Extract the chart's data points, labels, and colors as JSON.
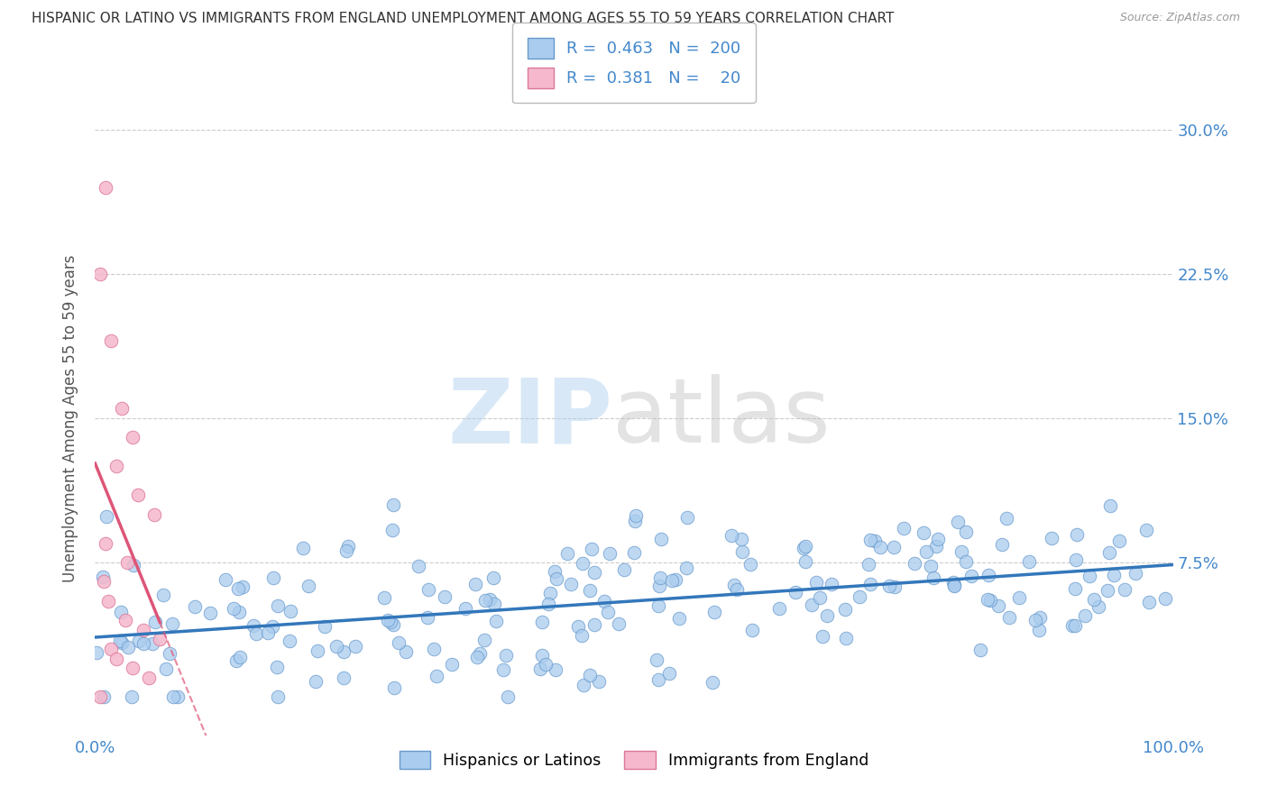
{
  "title": "HISPANIC OR LATINO VS IMMIGRANTS FROM ENGLAND UNEMPLOYMENT AMONG AGES 55 TO 59 YEARS CORRELATION CHART",
  "source": "Source: ZipAtlas.com",
  "ylabel": "Unemployment Among Ages 55 to 59 years",
  "xmin": 0.0,
  "xmax": 100.0,
  "ymin": -1.5,
  "ymax": 31.5,
  "ytick_vals": [
    0.0,
    7.5,
    15.0,
    22.5,
    30.0
  ],
  "ytick_labels": [
    "",
    "7.5%",
    "15.0%",
    "22.5%",
    "30.0%"
  ],
  "xtick_vals": [
    0.0,
    100.0
  ],
  "xtick_labels": [
    "0.0%",
    "100.0%"
  ],
  "series1_color": "#aaccee",
  "series1_edge": "#6699cc",
  "series2_color": "#f5b8cc",
  "series2_edge": "#dd7799",
  "trendline1_color": "#3377bb",
  "trendline2_color": "#dd5577",
  "legend_r1": "0.463",
  "legend_n1": "200",
  "legend_r2": "0.381",
  "legend_n2": "20",
  "legend_label1": "Hispanics or Latinos",
  "legend_label2": "Immigrants from England",
  "background_color": "#ffffff",
  "grid_color": "#cccccc",
  "title_color": "#333333",
  "title_fontsize": 11.0,
  "ylabel_color": "#555555",
  "tick_color": "#4488cc",
  "n1": 200,
  "n2": 20
}
